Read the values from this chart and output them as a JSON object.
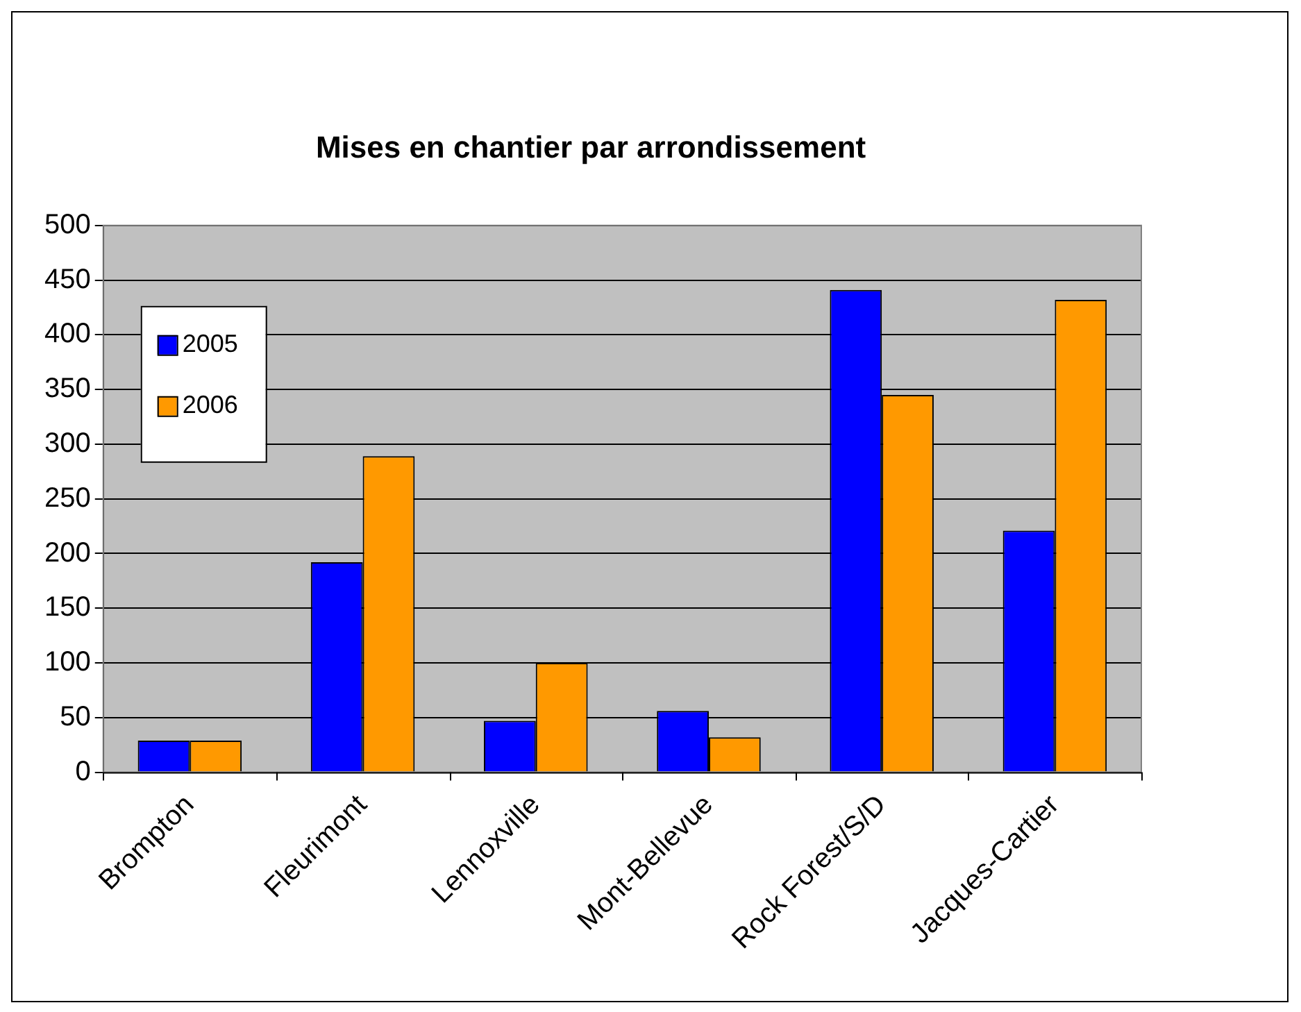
{
  "chart_data": {
    "type": "bar",
    "title": "Mises en chantier par arrondissement",
    "categories": [
      "Brompton",
      "Fleurimont",
      "Lennoxville",
      "Mont-Bellevue",
      "Rock Forest/S/D",
      "Jacques-Cartier"
    ],
    "series": [
      {
        "name": "2005",
        "color": "#0000ff",
        "values": [
          29,
          192,
          47,
          56,
          441,
          221
        ]
      },
      {
        "name": "2006",
        "color": "#ff9900",
        "values": [
          29,
          289,
          100,
          32,
          345,
          432
        ]
      }
    ],
    "ylim": [
      0,
      500
    ],
    "yticks": [
      0,
      50,
      100,
      150,
      200,
      250,
      300,
      350,
      400,
      450,
      500
    ],
    "grid": "y",
    "legend": "top left"
  }
}
